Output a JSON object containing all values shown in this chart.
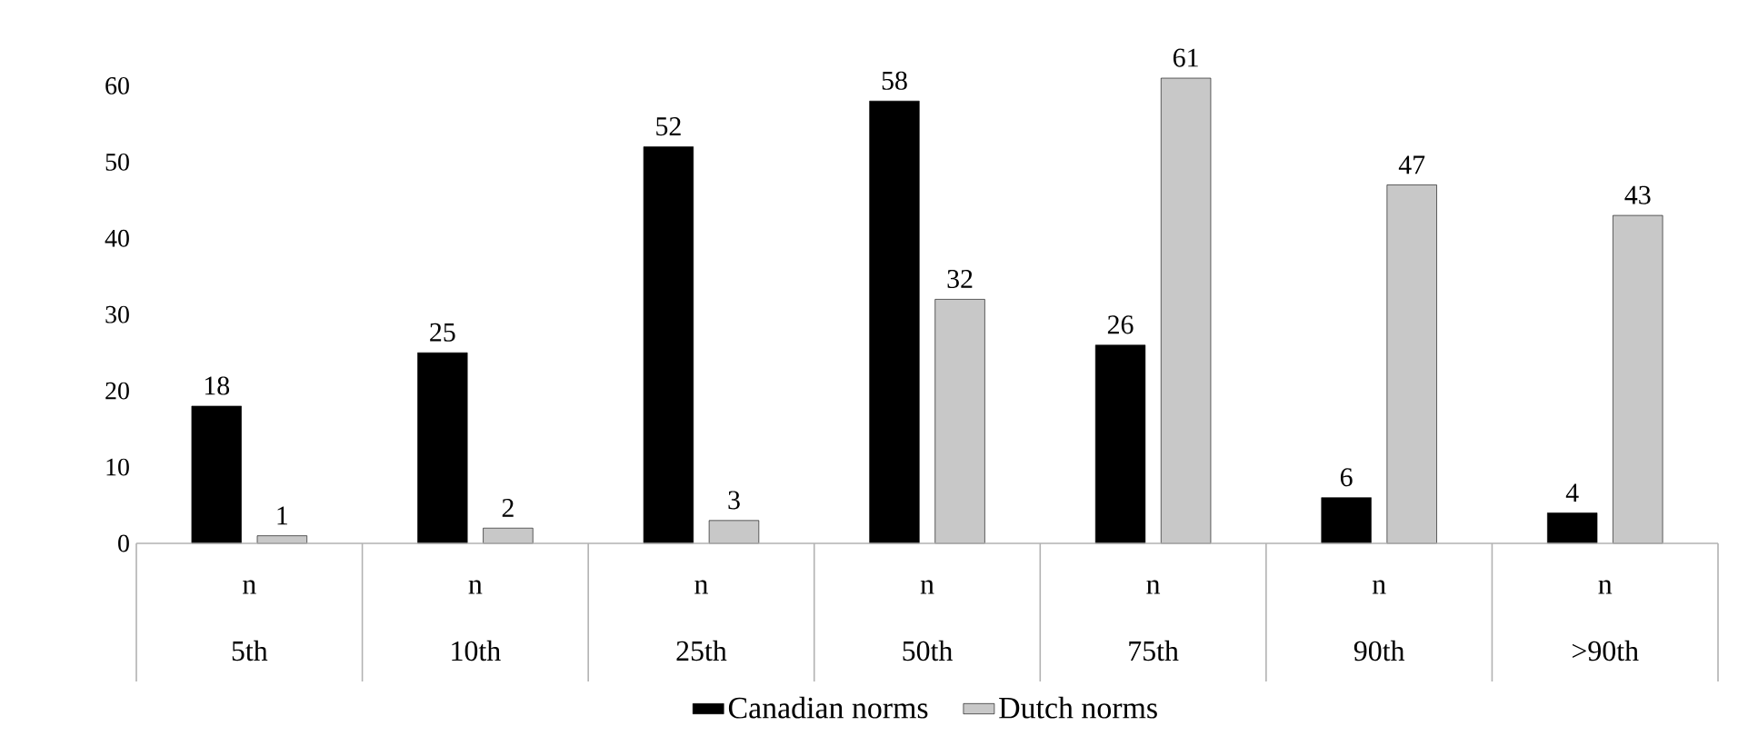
{
  "chart_data": {
    "type": "bar",
    "categories": [
      "5th",
      "10th",
      "25th",
      "50th",
      "75th",
      "90th",
      ">90th"
    ],
    "annotations": [
      "n",
      "n",
      "n",
      "n",
      "n",
      "n",
      "n"
    ],
    "series": [
      {
        "name": "Canadian norms",
        "color": "#000000",
        "values": [
          18,
          25,
          52,
          58,
          26,
          6,
          4
        ]
      },
      {
        "name": "Dutch norms",
        "color": "#c8c8c8",
        "values": [
          1,
          2,
          3,
          32,
          61,
          47,
          43
        ]
      }
    ],
    "ylim": [
      0,
      61
    ],
    "yticks": [
      0,
      10,
      20,
      30,
      40,
      50,
      60
    ],
    "data_labels": true,
    "legend": "bottom",
    "grid": false
  }
}
